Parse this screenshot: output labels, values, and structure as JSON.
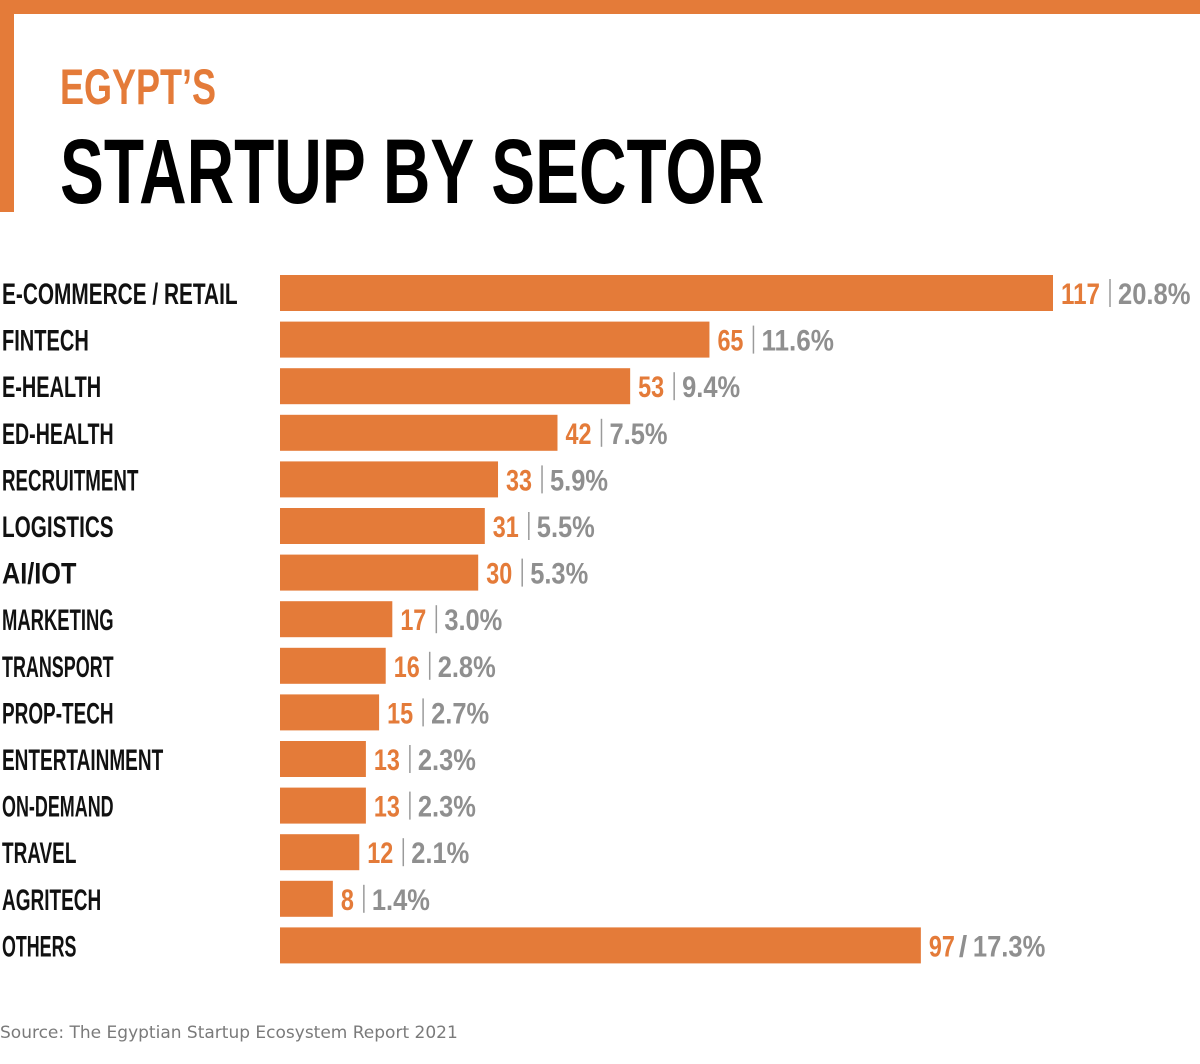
{
  "header": {
    "subtitle": "EGYPT’S",
    "title": "STARTUP BY SECTOR"
  },
  "colors": {
    "accent": "#E47B39",
    "label": "#111111",
    "percent": "#8F8F8F"
  },
  "source": "Source: The Egyptian Startup Ecosystem Report 2021",
  "chart_data": {
    "type": "bar",
    "orientation": "horizontal",
    "title": "EGYPT’S STARTUP BY SECTOR",
    "xlabel": "",
    "ylabel": "",
    "xlim": [
      0,
      117
    ],
    "grid": false,
    "legend": "none",
    "categories": [
      "E-COMMERCE / RETAIL",
      "FINTECH",
      "E-HEALTH",
      "ED-HEALTH",
      "RECRUITMENT",
      "LOGISTICS",
      "AI/IOT",
      "MARKETING",
      "TRANSPORT",
      "PROP-TECH",
      "ENTERTAINMENT",
      "ON-DEMAND",
      "TRAVEL",
      "AGRITECH",
      "OTHERS"
    ],
    "values": [
      117,
      65,
      53,
      42,
      33,
      31,
      30,
      17,
      16,
      15,
      13,
      13,
      12,
      8,
      97
    ],
    "percent_labels": [
      "20.8%",
      "11.6%",
      "9.4%",
      "7.5%",
      "5.9%",
      "5.5%",
      "5.3%",
      "3.0%",
      "2.8%",
      "2.7%",
      "2.3%",
      "2.3%",
      "2.1%",
      "1.4%",
      "17.3%"
    ],
    "separators": [
      "|",
      "|",
      "|",
      "|",
      "|",
      "|",
      "|",
      "|",
      "|",
      "|",
      "|",
      "|",
      "|",
      "|",
      "/"
    ]
  }
}
